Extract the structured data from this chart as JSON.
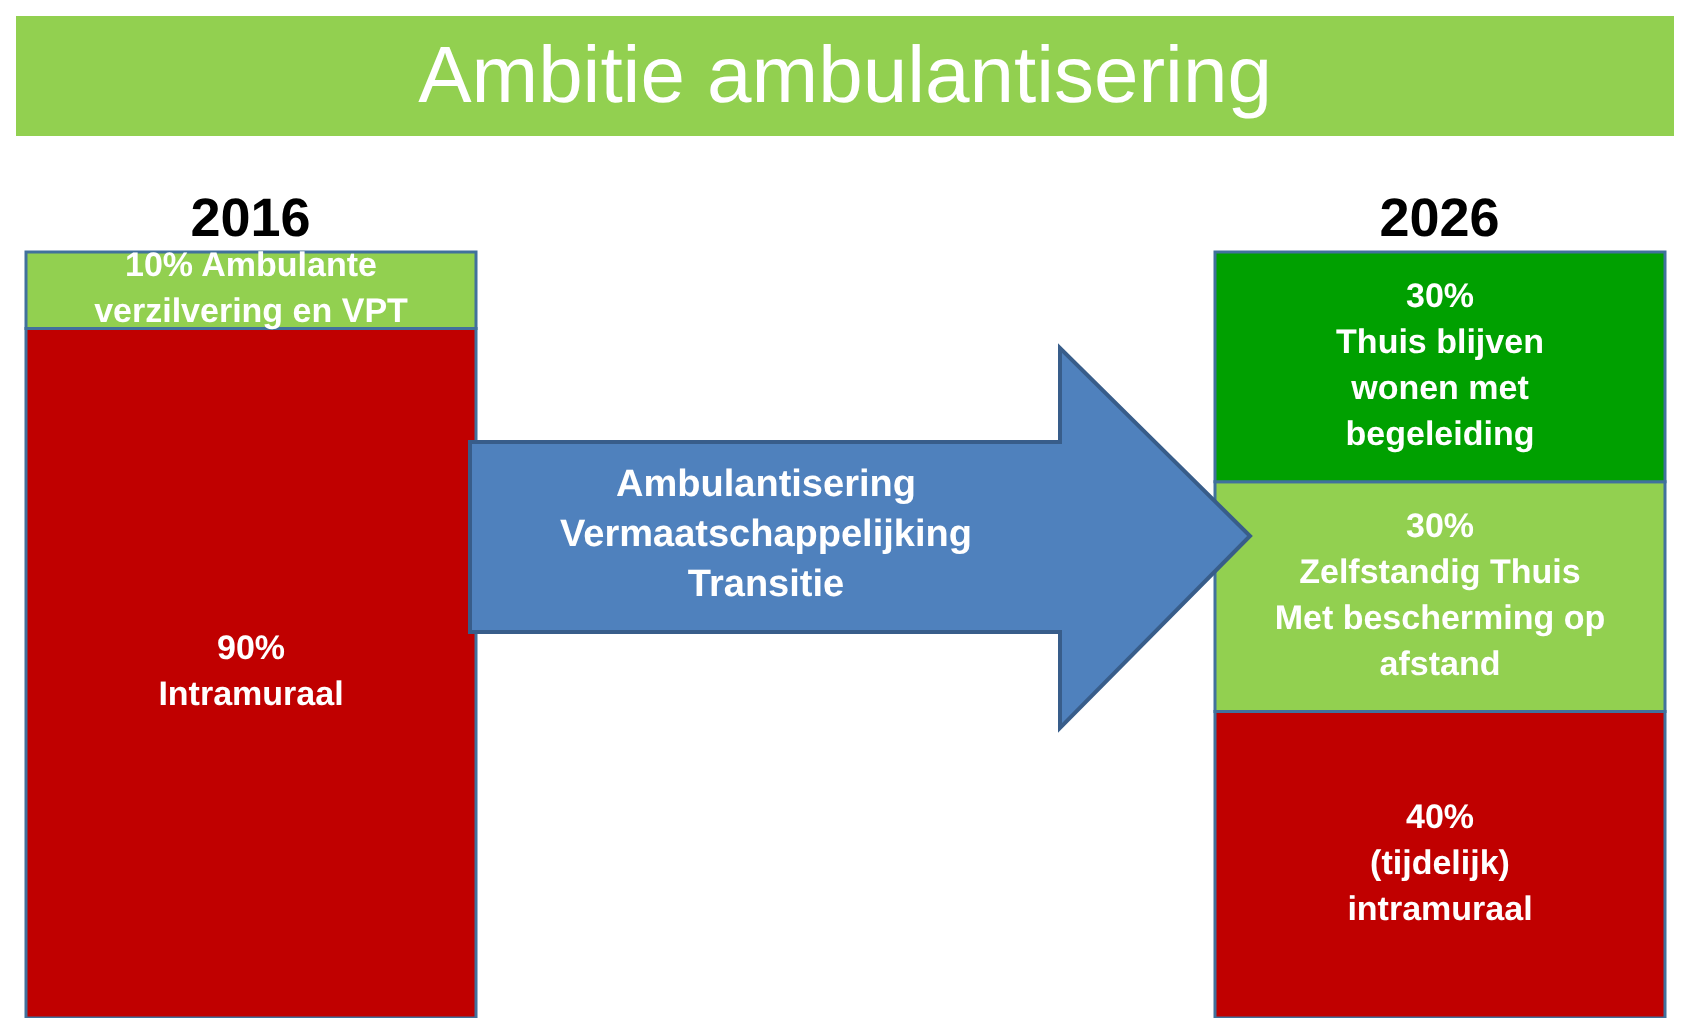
{
  "chart_data": {
    "type": "bar",
    "title": "Ambitie ambulantisering",
    "stacked": true,
    "categories": [
      "2016",
      "2026"
    ],
    "series": [
      {
        "name": "Intramuraal",
        "color": "#c00000",
        "values": [
          90,
          null
        ],
        "value_labels": [
          "90%",
          null
        ]
      },
      {
        "name": "Ambulante verzilvering en VPT",
        "color": "#92d050",
        "values": [
          10,
          null
        ],
        "value_labels": [
          "10%",
          null
        ]
      },
      {
        "name": "(tijdelijk) intramuraal",
        "color": "#c00000",
        "values": [
          null,
          40
        ],
        "value_labels": [
          null,
          "40%"
        ]
      },
      {
        "name": "Zelfstandig Thuis Met bescherming op afstand",
        "color": "#92d050",
        "values": [
          null,
          30
        ],
        "value_labels": [
          null,
          "30%"
        ]
      },
      {
        "name": "Thuis blijven wonen met begeleiding",
        "color": "#00a000",
        "values": [
          null,
          30
        ],
        "value_labels": [
          null,
          "30%"
        ]
      }
    ],
    "annotations": [
      "Ambulantisering Vermaatschappelijking Transitie"
    ]
  }
}
